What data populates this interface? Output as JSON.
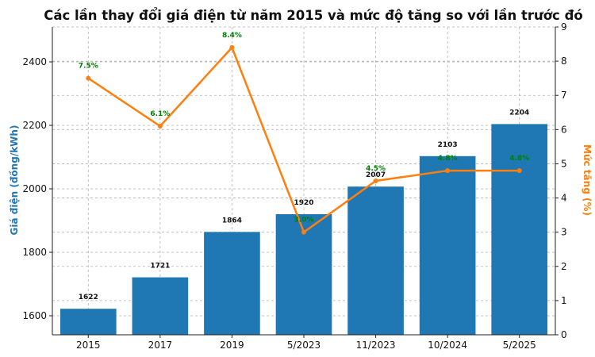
{
  "chart_data": {
    "type": "bar",
    "title": "Các lần thay đổi giá điện từ năm 2015 và mức độ tăng so với lần trước đó",
    "categories": [
      "2015",
      "2017",
      "2019",
      "5/2023",
      "11/2023",
      "10/2024",
      "5/2025"
    ],
    "ylabel": "Giá điện (đồng/kWh)",
    "y2label": "Mức tăng (%)",
    "ylim": [
      1540,
      2510
    ],
    "y2lim": [
      0,
      9
    ],
    "yticks": [
      1600,
      1800,
      2000,
      2200,
      2400
    ],
    "y2ticks": [
      0,
      1,
      2,
      3,
      4,
      5,
      6,
      7,
      8,
      9
    ],
    "grid": true,
    "series": [
      {
        "type": "bar",
        "axis": "left",
        "color": "#1f77b4",
        "values": [
          1622,
          1721,
          1864,
          1920,
          2007,
          2103,
          2204
        ],
        "labels": [
          "1622",
          "1721",
          "1864",
          "1920",
          "2007",
          "2103",
          "2204"
        ]
      },
      {
        "type": "line",
        "axis": "right",
        "color": "#ff7f0e",
        "label_color": "#008000",
        "values": [
          7.5,
          6.1,
          8.4,
          3.0,
          4.5,
          4.8,
          4.8
        ],
        "labels": [
          "7.5%",
          "6.1%",
          "8.4%",
          "3.0%",
          "4.5%",
          "4.8%",
          "4.8%"
        ]
      }
    ]
  }
}
